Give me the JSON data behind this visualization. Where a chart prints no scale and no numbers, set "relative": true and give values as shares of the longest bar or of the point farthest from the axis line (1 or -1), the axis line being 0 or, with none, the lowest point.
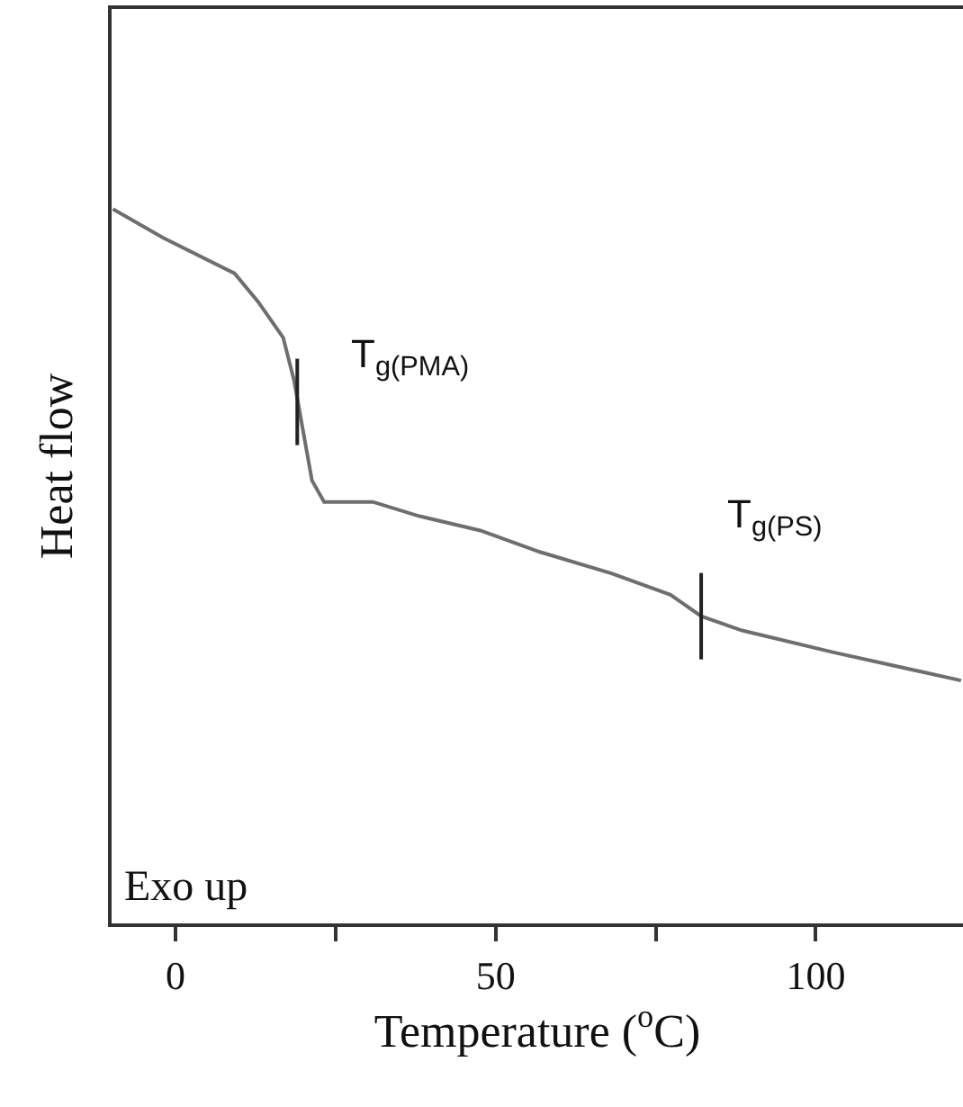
{
  "chart_data": {
    "type": "line",
    "relative": true,
    "xlabel": "Temperature ($^{o}$C)",
    "ylabel": "Heat flow",
    "x": [
      -9.8,
      -2.0,
      9.2,
      12.9,
      16.8,
      18.5,
      19.9,
      21.3,
      23.2,
      30.8,
      38.1,
      47.6,
      56.9,
      68.1,
      77.3,
      82.1,
      88.5,
      102.5,
      122.7
    ],
    "series": [
      {
        "color": "#6e6e6e",
        "values": [
          1.0,
          0.96,
          0.91,
          0.87,
          0.82,
          0.76,
          0.69,
          0.62,
          0.59,
          0.59,
          0.57,
          0.55,
          0.52,
          0.49,
          0.46,
          0.43,
          0.41,
          0.38,
          0.34
        ]
      }
    ],
    "xlim": [
      -10,
      123
    ],
    "xticks": [
      0,
      {
        "value": 25,
        "label": null
      },
      50,
      {
        "value": 75,
        "label": null
      },
      100
    ],
    "annotations": [
      {
        "text": "T$_{g(PMA)}$",
        "x": 19.0,
        "y": 0.73
      },
      {
        "text": "T$_{g(PS)}$",
        "x": 82.1,
        "y": 0.43
      },
      "Exo up"
    ],
    "grid": false,
    "marker": "none",
    "line_style": "solid"
  }
}
